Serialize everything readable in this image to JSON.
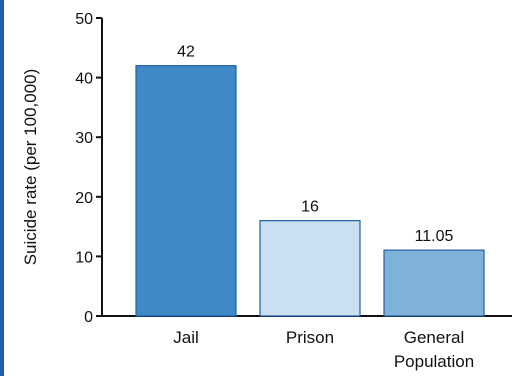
{
  "frame": {
    "accent_color": "#1f5fa8"
  },
  "chart_data": {
    "type": "bar",
    "title": "",
    "xlabel": "",
    "ylabel": "Suicide rate (per 100,000)",
    "ylim": [
      0,
      50
    ],
    "yticks": [
      0,
      10,
      20,
      30,
      40,
      50
    ],
    "grid": false,
    "categories": [
      {
        "lines": [
          "Jail"
        ]
      },
      {
        "lines": [
          "Prison"
        ]
      },
      {
        "lines": [
          "General",
          "Population"
        ]
      }
    ],
    "values": [
      42,
      16,
      11.05
    ],
    "value_labels": [
      "42",
      "16",
      "11.05"
    ],
    "bar_colors": [
      "#3f8ac6",
      "#c9e0f0",
      "#7fb1d9"
    ],
    "bar_edge_colors": [
      "#1f5fa8",
      "#1f5fa8",
      "#1f5fa8"
    ]
  }
}
